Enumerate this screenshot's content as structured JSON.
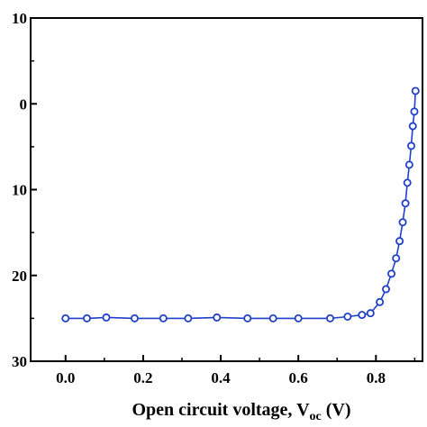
{
  "chart_data": {
    "type": "line",
    "xlabel": "Open circuit voltage, V",
    "xlabel_sub": "oc",
    "xlabel_unit": " (V)",
    "ylabel": "",
    "xlim": [
      -0.09,
      0.92
    ],
    "ylim": [
      -10,
      30
    ],
    "y_inverted": true,
    "grid": false,
    "x_ticks": [
      0.0,
      0.2,
      0.4,
      0.6,
      0.8
    ],
    "x_tick_labels": [
      "0.0",
      "0.2",
      "0.4",
      "0.6",
      "0.8"
    ],
    "y_ticks": [
      -10,
      0,
      10,
      20,
      30
    ],
    "y_tick_labels": [
      "10",
      "0",
      "10",
      "20",
      "30"
    ],
    "series": [
      {
        "color": "#1f3fc8",
        "marker": "open-circle",
        "x": [
          0.0,
          0.055,
          0.105,
          0.178,
          0.252,
          0.316,
          0.39,
          0.469,
          0.535,
          0.6,
          0.682,
          0.727,
          0.764,
          0.786,
          0.81,
          0.826,
          0.84,
          0.852,
          0.861,
          0.869,
          0.876,
          0.881,
          0.886,
          0.891,
          0.895,
          0.899,
          0.902
        ],
        "values": [
          25.0,
          25.0,
          24.9,
          25.0,
          25.0,
          25.0,
          24.9,
          25.0,
          25.0,
          25.0,
          25.0,
          24.8,
          24.6,
          24.4,
          23.1,
          21.6,
          19.8,
          18.0,
          16.0,
          13.8,
          11.6,
          9.2,
          7.1,
          4.9,
          2.6,
          0.9,
          -1.5
        ]
      }
    ]
  }
}
